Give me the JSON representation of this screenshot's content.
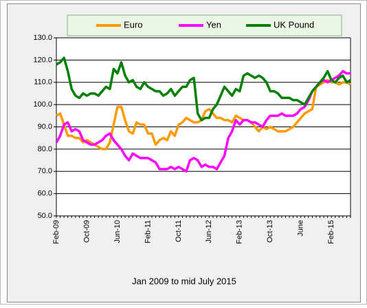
{
  "chart_data": {
    "type": "line",
    "title": "Jan 2009 to mid July 2015",
    "categories": [
      "Feb-09",
      null,
      null,
      null,
      null,
      null,
      null,
      null,
      "Oct-09",
      null,
      null,
      null,
      null,
      null,
      null,
      null,
      "Jun-10",
      null,
      null,
      null,
      null,
      null,
      null,
      null,
      "Feb-11",
      null,
      null,
      null,
      null,
      null,
      null,
      null,
      "Oct-11",
      null,
      null,
      null,
      null,
      null,
      null,
      null,
      "Jun-12",
      null,
      null,
      null,
      null,
      null,
      null,
      null,
      "Feb-13",
      null,
      null,
      null,
      null,
      null,
      null,
      null,
      "Oct-13",
      null,
      null,
      null,
      null,
      null,
      null,
      null,
      "June",
      null,
      null,
      null,
      null,
      null,
      null,
      null,
      "Feb-15",
      null,
      null,
      null,
      null,
      null
    ],
    "series": [
      {
        "name": "Euro",
        "color": "#ff9900",
        "values": [
          95,
          96,
          91,
          86,
          86,
          85,
          85,
          83,
          84,
          83,
          82,
          81,
          80,
          80,
          83,
          91,
          99,
          99,
          93,
          88,
          87,
          92,
          91,
          91,
          87,
          87,
          82,
          84,
          85,
          84,
          88,
          86,
          91,
          92,
          94,
          93,
          92,
          92,
          93,
          97,
          98,
          96,
          94,
          94,
          93,
          93,
          92,
          95,
          94,
          93,
          93,
          92,
          90,
          88,
          90,
          89,
          90,
          89,
          88,
          88,
          88,
          89,
          90,
          92,
          94,
          96,
          97,
          98,
          108,
          109,
          110,
          111,
          110,
          110,
          109,
          110,
          110,
          109
        ]
      },
      {
        "name": "Yen",
        "color": "#ff00ff",
        "values": [
          83,
          86,
          91,
          92,
          88,
          89,
          88,
          84,
          83,
          82,
          82,
          83,
          84,
          86,
          87,
          84,
          82,
          80,
          77,
          75,
          78,
          77,
          76,
          76,
          76,
          75,
          74,
          71,
          71,
          71,
          72,
          71,
          72,
          71,
          70,
          75,
          76,
          75,
          72,
          73,
          72,
          72,
          71,
          74,
          77,
          85,
          88,
          93,
          91,
          93,
          93,
          92,
          92,
          91,
          90,
          93,
          95,
          95,
          95,
          96,
          95,
          95,
          95,
          96,
          98,
          99,
          102,
          106,
          108,
          110,
          111,
          110,
          111,
          112,
          113,
          115,
          114,
          114
        ]
      },
      {
        "name": "UK Pound",
        "color": "#008000",
        "values": [
          118,
          119,
          121,
          115,
          107,
          104,
          103,
          105,
          104,
          105,
          105,
          104,
          106,
          108,
          107,
          116,
          114,
          119,
          113,
          110,
          111,
          108,
          107,
          110,
          108,
          107,
          106,
          106,
          104,
          105,
          107,
          104,
          106,
          108,
          108,
          111,
          112,
          96,
          93,
          94,
          94,
          98,
          100,
          104,
          108,
          106,
          104,
          107,
          106,
          113,
          114,
          113,
          112,
          113,
          112,
          110,
          106,
          106,
          105,
          103,
          103,
          103,
          102,
          102,
          101,
          100,
          103,
          106,
          108,
          110,
          112,
          115,
          111,
          110,
          112,
          113,
          110,
          111
        ]
      }
    ],
    "ylim": [
      50,
      130
    ],
    "yticks": [
      {
        "value": 50,
        "label": "50.0"
      },
      {
        "value": 60,
        "label": "60.0"
      },
      {
        "value": 70,
        "label": "70.0"
      },
      {
        "value": 80,
        "label": "80.0"
      },
      {
        "value": 90,
        "label": "90.0"
      },
      {
        "value": 100,
        "label": "100.0"
      },
      {
        "value": 110,
        "label": "110.0"
      },
      {
        "value": 120,
        "label": "120.0"
      },
      {
        "value": 130,
        "label": "130.0"
      }
    ],
    "grid": true,
    "legend": "top"
  }
}
